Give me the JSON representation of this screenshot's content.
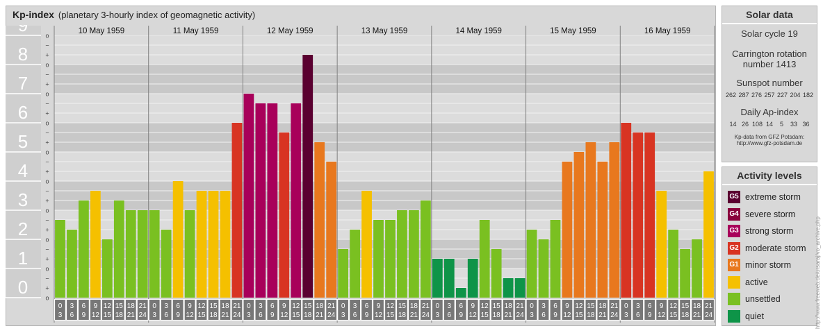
{
  "header": {
    "title": "Kp-index",
    "subtitle": "(planetary 3-hourly index of geomagnetic activity)"
  },
  "chart_data": {
    "type": "bar",
    "title": "Kp-index",
    "subtitle": "(planetary 3-hourly index of geomagnetic activity)",
    "ylim": [
      0,
      9
    ],
    "yticks": [
      "0",
      "1",
      "2",
      "3",
      "4",
      "5",
      "6",
      "7",
      "8",
      "9"
    ],
    "minor_tick_marks": [
      "o",
      "+",
      "−"
    ],
    "days": [
      "10 May 1959",
      "11 May 1959",
      "12 May 1959",
      "13 May 1959",
      "14 May 1959",
      "15 May 1959",
      "16 May 1959"
    ],
    "interval_top": [
      "0",
      "3",
      "6",
      "9",
      "12",
      "15",
      "18",
      "21"
    ],
    "interval_bottom": [
      "3",
      "6",
      "9",
      "12",
      "15",
      "18",
      "21",
      "24"
    ],
    "values": [
      2.667,
      2.333,
      3.333,
      3.667,
      2.0,
      3.333,
      3.0,
      3.0,
      3.0,
      2.333,
      4.0,
      3.0,
      3.667,
      3.667,
      3.667,
      6.0,
      7.0,
      6.667,
      6.667,
      5.667,
      6.667,
      8.333,
      5.333,
      4.667,
      1.667,
      2.333,
      3.667,
      2.667,
      2.667,
      3.0,
      3.0,
      3.333,
      1.333,
      1.333,
      0.333,
      1.333,
      2.667,
      1.667,
      0.667,
      0.667,
      2.333,
      2.0,
      2.667,
      4.667,
      5.0,
      5.333,
      4.667,
      5.333,
      6.0,
      5.667,
      5.667,
      3.667,
      2.333,
      1.667,
      2.0,
      4.333
    ],
    "colors": {
      "quiet": "#0e9448",
      "unsettled": "#7ac021",
      "active": "#f5c000",
      "G1": "#e8781e",
      "G2": "#d83422",
      "G3": "#a8005a",
      "G4": "#8a003c",
      "G5": "#5a0030"
    },
    "grid": true
  },
  "solar": {
    "heading": "Solar data",
    "cycle": "Solar cycle 19",
    "carrington_1": "Carrington rotation",
    "carrington_2": "number 1413",
    "sunspot_heading": "Sunspot number",
    "sunspot_values": "262 287 276 257 227 204 182",
    "ap_heading": "Daily Ap-index",
    "ap_values": "14   26  108  14    5    33   36",
    "source_1": "Kp-data from GFZ Potsdam:",
    "source_2": "http://www.gfz-potsdam.de"
  },
  "legend": {
    "heading": "Activity levels",
    "items": [
      {
        "badge": "G5",
        "label": "extreme storm",
        "color": "#5a0030"
      },
      {
        "badge": "G4",
        "label": "severe storm",
        "color": "#8a003c"
      },
      {
        "badge": "G3",
        "label": "strong storm",
        "color": "#a8005a"
      },
      {
        "badge": "G2",
        "label": "moderate storm",
        "color": "#d83422"
      },
      {
        "badge": "G1",
        "label": "minor storm",
        "color": "#e8781e"
      },
      {
        "badge": "",
        "label": "active",
        "color": "#f5c000"
      },
      {
        "badge": "",
        "label": "unsettled",
        "color": "#7ac021"
      },
      {
        "badge": "",
        "label": "quiet",
        "color": "#0e9448"
      }
    ]
  },
  "credit": "http://www.freeweb.de/ursaraj/vo_archive.php"
}
